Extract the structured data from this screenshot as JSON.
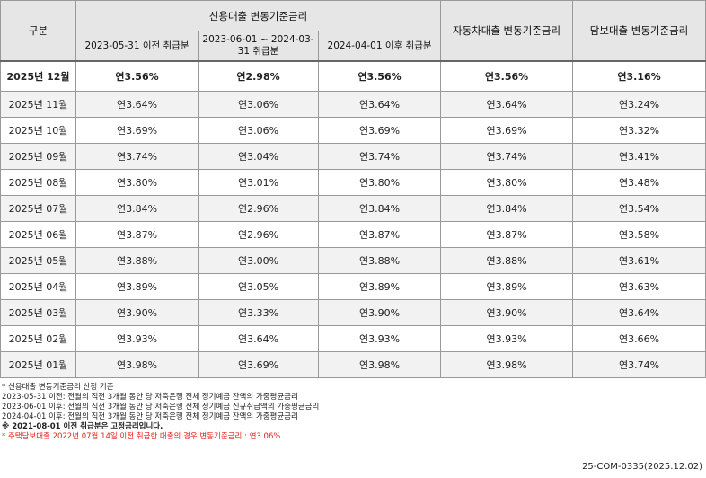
{
  "table": {
    "header": {
      "group": "구분",
      "credit": "신용대출 변동기준금리",
      "credit_sub": [
        "2023-05-31 이전 취급분",
        "2023-06-01 ~ 2024-03-31 취급분",
        "2024-04-01 이후 취급분"
      ],
      "auto": "자동차대출 변동기준금리",
      "secured": "담보대출 변동기준금리"
    },
    "rows": [
      [
        "2025년 12월",
        "연3.56%",
        "연2.98%",
        "연3.56%",
        "연3.56%",
        "연3.16%"
      ],
      [
        "2025년 11월",
        "연3.64%",
        "연3.06%",
        "연3.64%",
        "연3.64%",
        "연3.24%"
      ],
      [
        "2025년 10월",
        "연3.69%",
        "연3.06%",
        "연3.69%",
        "연3.69%",
        "연3.32%"
      ],
      [
        "2025년 09월",
        "연3.74%",
        "연3.04%",
        "연3.74%",
        "연3.74%",
        "연3.41%"
      ],
      [
        "2025년 08월",
        "연3.80%",
        "연3.01%",
        "연3.80%",
        "연3.80%",
        "연3.48%"
      ],
      [
        "2025년 07월",
        "연3.84%",
        "연2.96%",
        "연3.84%",
        "연3.84%",
        "연3.54%"
      ],
      [
        "2025년 06월",
        "연3.87%",
        "연2.96%",
        "연3.87%",
        "연3.87%",
        "연3.58%"
      ],
      [
        "2025년 05월",
        "연3.88%",
        "연3.00%",
        "연3.88%",
        "연3.88%",
        "연3.61%"
      ],
      [
        "2025년 04월",
        "연3.89%",
        "연3.05%",
        "연3.89%",
        "연3.89%",
        "연3.63%"
      ],
      [
        "2025년 03월",
        "연3.90%",
        "연3.33%",
        "연3.90%",
        "연3.90%",
        "연3.64%"
      ],
      [
        "2025년 02월",
        "연3.93%",
        "연3.64%",
        "연3.93%",
        "연3.93%",
        "연3.66%"
      ],
      [
        "2025년 01월",
        "연3.98%",
        "연3.69%",
        "연3.98%",
        "연3.98%",
        "연3.74%"
      ]
    ]
  },
  "notes": [
    "* 신용대출 변동기준금리 산정 기준",
    "2023-05-31 이전: 전월의 직전 3개월 동안 당 저축은행 전체 정기예금 잔액의 가중평균금리",
    "2023-06-01 이후: 전월의 직전 3개월 동안 당 저축은행 전체 정기예금 신규취급액의 가중평균금리",
    "2024-04-01 이후: 전월의 직전 3개월 동안 당 저축은행 전체 정기예금 잔액의 가중평균금리",
    "※ 2021-08-01 이전 취급분은 고정금리입니다.",
    "* 주택담보대출 2022년 07월 14일 이전 취급한 대출의 경우 변동기준금리 : 연3.06%"
  ],
  "footer": "25-COM-0335(2025.12.02)"
}
